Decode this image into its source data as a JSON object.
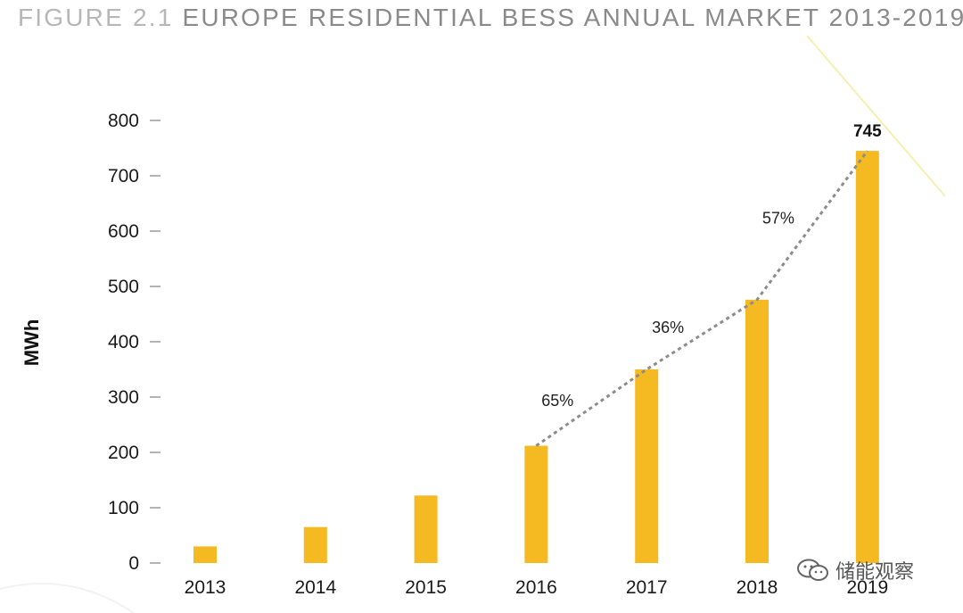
{
  "figure": {
    "number": "FIGURE 2.1",
    "title": "EUROPE RESIDENTIAL BESS ANNUAL MARKET 2013-2019"
  },
  "colors": {
    "bar": "#f5b922",
    "trend": "#8c8c8c",
    "axis_tick": "#9a9a9a",
    "decor_curve": "#f3f0b0"
  },
  "chart_data": {
    "type": "bar",
    "title": "EUROPE RESIDENTIAL BESS ANNUAL MARKET 2013-2019",
    "xlabel": "",
    "ylabel": "MWh",
    "ylim": [
      0,
      800
    ],
    "yticks": [
      0,
      100,
      200,
      300,
      400,
      500,
      600,
      700,
      800
    ],
    "grid": false,
    "categories": [
      "2013",
      "2014",
      "2015",
      "2016",
      "2017",
      "2018",
      "2019"
    ],
    "values": [
      30,
      65,
      122,
      212,
      350,
      476,
      745
    ],
    "data_labels": [
      {
        "category": "2019",
        "text": "745"
      }
    ],
    "trend_line": {
      "style": "dashed",
      "from_category": "2016",
      "points": [
        {
          "category": "2016",
          "value": 212
        },
        {
          "category": "2017",
          "value": 350
        },
        {
          "category": "2018",
          "value": 476
        },
        {
          "category": "2019",
          "value": 745
        }
      ],
      "growth_labels": [
        {
          "between": [
            "2016",
            "2017"
          ],
          "text": "65%"
        },
        {
          "between": [
            "2017",
            "2018"
          ],
          "text": "36%"
        },
        {
          "between": [
            "2018",
            "2019"
          ],
          "text": "57%"
        }
      ]
    }
  },
  "watermark": {
    "icon": "wechat-icon",
    "text": "储能观察"
  }
}
